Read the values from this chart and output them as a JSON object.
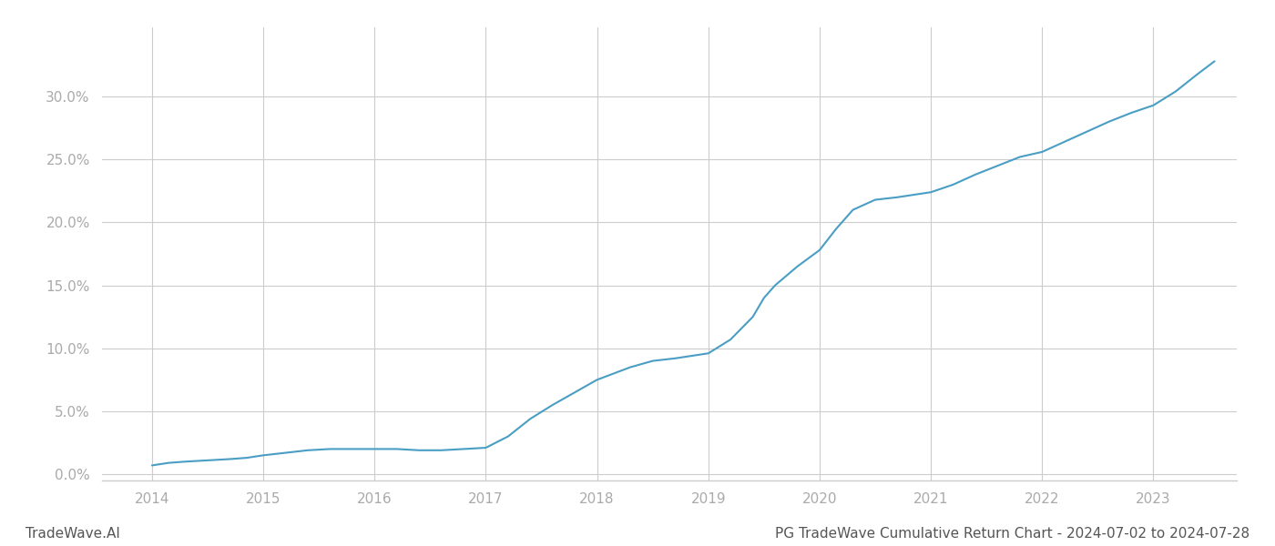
{
  "title": "",
  "footer_left": "TradeWave.AI",
  "footer_right": "PG TradeWave Cumulative Return Chart - 2024-07-02 to 2024-07-28",
  "line_color": "#4a9ec4",
  "background_color": "#ffffff",
  "grid_color": "#cccccc",
  "x_years": [
    2014,
    2015,
    2016,
    2017,
    2018,
    2019,
    2020,
    2021,
    2022,
    2023
  ],
  "x_data": [
    2014.0,
    2014.15,
    2014.3,
    2014.5,
    2014.7,
    2014.85,
    2015.0,
    2015.2,
    2015.4,
    2015.6,
    2015.8,
    2016.0,
    2016.2,
    2016.4,
    2016.6,
    2016.8,
    2017.0,
    2017.2,
    2017.4,
    2017.6,
    2017.8,
    2018.0,
    2018.15,
    2018.3,
    2018.5,
    2018.7,
    2018.85,
    2019.0,
    2019.2,
    2019.4,
    2019.5,
    2019.6,
    2019.8,
    2020.0,
    2020.15,
    2020.3,
    2020.5,
    2020.7,
    2020.85,
    2021.0,
    2021.2,
    2021.4,
    2021.6,
    2021.8,
    2022.0,
    2022.2,
    2022.4,
    2022.6,
    2022.8,
    2023.0,
    2023.2,
    2023.4,
    2023.55
  ],
  "y_data": [
    0.007,
    0.009,
    0.01,
    0.011,
    0.012,
    0.013,
    0.015,
    0.017,
    0.019,
    0.02,
    0.02,
    0.02,
    0.02,
    0.019,
    0.019,
    0.02,
    0.021,
    0.03,
    0.044,
    0.055,
    0.065,
    0.075,
    0.08,
    0.085,
    0.09,
    0.092,
    0.094,
    0.096,
    0.107,
    0.125,
    0.14,
    0.15,
    0.165,
    0.178,
    0.195,
    0.21,
    0.218,
    0.22,
    0.222,
    0.224,
    0.23,
    0.238,
    0.245,
    0.252,
    0.256,
    0.264,
    0.272,
    0.28,
    0.287,
    0.293,
    0.304,
    0.318,
    0.328
  ],
  "ylim": [
    -0.005,
    0.355
  ],
  "xlim": [
    2013.55,
    2023.75
  ],
  "yticks": [
    0.0,
    0.05,
    0.1,
    0.15,
    0.2,
    0.25,
    0.3
  ],
  "ytick_labels": [
    "0.0%",
    "5.0%",
    "10.0%",
    "15.0%",
    "20.0%",
    "25.0%",
    "30.0%"
  ],
  "line_width": 1.5,
  "tick_label_color": "#aaaaaa",
  "footer_fontsize": 11,
  "footer_left_color": "#555555",
  "footer_right_color": "#555555",
  "spine_bottom_color": "#cccccc"
}
